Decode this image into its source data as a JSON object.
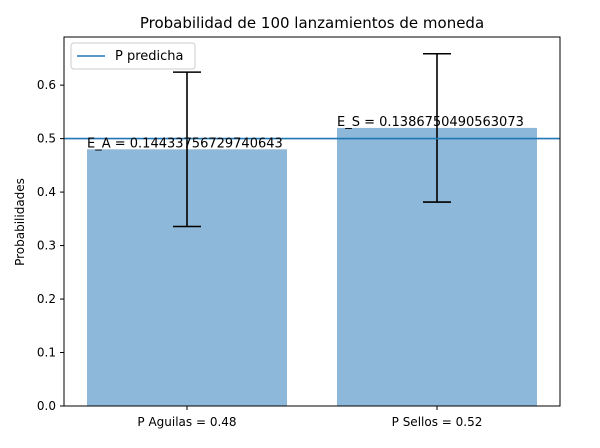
{
  "chart_data": {
    "type": "bar",
    "title": "Probabilidad de 100 lanzamientos de moneda",
    "xlabel": "",
    "ylabel": "Probabilidades",
    "categories": [
      "P Aguilas = 0.48",
      "P Sellos = 0.52"
    ],
    "values": [
      0.48,
      0.52
    ],
    "error": [
      0.14433756729740643,
      0.1386750490563073
    ],
    "annotations": [
      "E_A = 0.14433756729740643",
      "E_S = 0.1386750490563073"
    ],
    "reference_line": {
      "name": "P predicha",
      "y": 0.5
    },
    "ylim": [
      0,
      0.69
    ],
    "yticks": [
      "0.0",
      "0.1",
      "0.2",
      "0.3",
      "0.4",
      "0.5",
      "0.6"
    ],
    "grid": false,
    "legend_position": "top-left",
    "colors": {
      "bar": "#8db8d9",
      "reference_line": "#1f77b4",
      "errorbar": "#000000",
      "axis": "#000000"
    }
  }
}
